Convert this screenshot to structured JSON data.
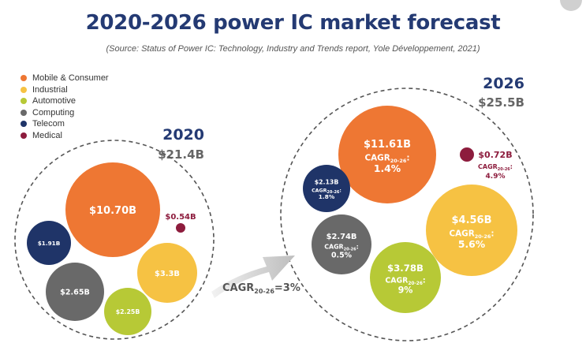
{
  "title": "2020-2026 power IC market forecast",
  "subtitle": "(Source: Status of Power IC: Technology, Industry and Trends report, Yole Développement, 2021)",
  "legend": [
    {
      "label": "Mobile & Consumer",
      "color": "#ee7733"
    },
    {
      "label": "Industrial",
      "color": "#f6c243"
    },
    {
      "label": "Automotive",
      "color": "#b7c936"
    },
    {
      "label": "Computing",
      "color": "#696969"
    },
    {
      "label": "Telecom",
      "color": "#1f3468"
    },
    {
      "label": "Medical",
      "color": "#8d1c3d"
    }
  ],
  "groups": {
    "y2020": {
      "year": "2020",
      "total": "$21.4B"
    },
    "y2026": {
      "year": "2026",
      "total": "$25.5B"
    }
  },
  "arrow": {
    "text": "CAGR",
    "sub": "20-26",
    "tail": "=3%"
  },
  "chart_data": {
    "type": "bubble",
    "title": "2020-2026 power IC market forecast",
    "unit": "$B",
    "groups": [
      {
        "year": "2020",
        "total": 21.4,
        "segments": [
          {
            "segment": "Mobile & Consumer",
            "value": 10.7,
            "label": "$10.70B"
          },
          {
            "segment": "Industrial",
            "value": 3.3,
            "label": "$3.3B"
          },
          {
            "segment": "Automotive",
            "value": 2.25,
            "label": "$2.25B"
          },
          {
            "segment": "Computing",
            "value": 2.65,
            "label": "$2.65B"
          },
          {
            "segment": "Telecom",
            "value": 1.91,
            "label": "$1.91B"
          },
          {
            "segment": "Medical",
            "value": 0.54,
            "label": "$0.54B"
          }
        ]
      },
      {
        "year": "2026",
        "total": 25.5,
        "cagr_total": "3%",
        "segments": [
          {
            "segment": "Mobile & Consumer",
            "value": 11.61,
            "label": "$11.61B",
            "cagr": "1.4%"
          },
          {
            "segment": "Industrial",
            "value": 4.56,
            "label": "$4.56B",
            "cagr": "5.6%"
          },
          {
            "segment": "Automotive",
            "value": 3.78,
            "label": "$3.78B",
            "cagr": "9%"
          },
          {
            "segment": "Computing",
            "value": 2.74,
            "label": "$2.74B",
            "cagr": "0.5%"
          },
          {
            "segment": "Telecom",
            "value": 2.13,
            "label": "$2.13B",
            "cagr": "1.8%"
          },
          {
            "segment": "Medical",
            "value": 0.72,
            "label": "$0.72B",
            "cagr": "4.9%"
          }
        ]
      }
    ]
  }
}
